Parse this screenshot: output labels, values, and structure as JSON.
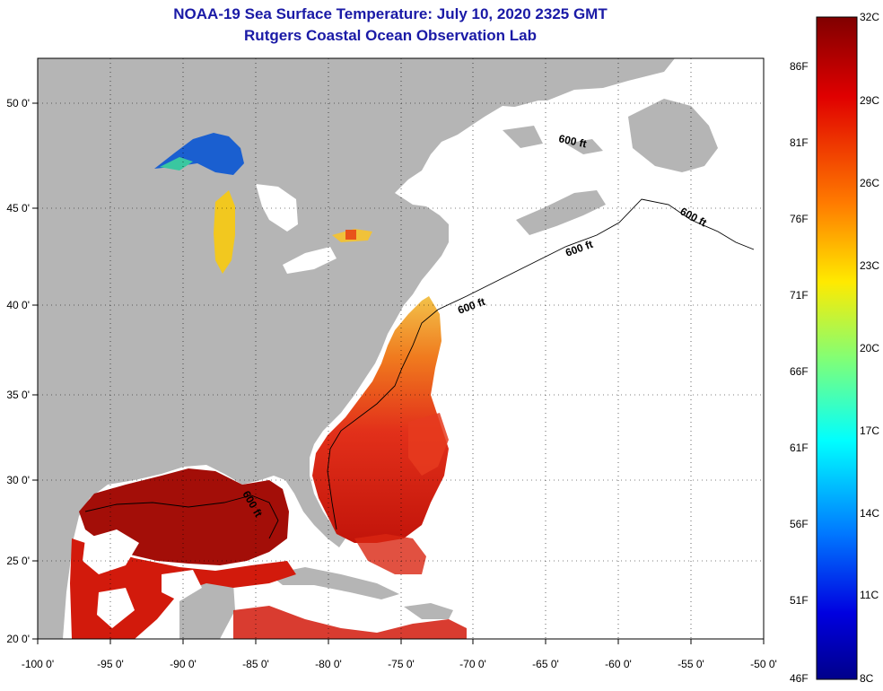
{
  "header": {
    "title": "NOAA-19 Sea Surface Temperature:  July 10, 2020 2325 GMT",
    "subtitle": "Rutgers Coastal Ocean Observation Lab"
  },
  "map": {
    "x_ticks": [
      "-100 0'",
      "-95 0'",
      "-90 0'",
      "-85 0'",
      "-80 0'",
      "-75 0'",
      "-70 0'",
      "-65 0'",
      "-60 0'",
      "-55 0'",
      "-50 0'"
    ],
    "y_ticks": [
      "50 0'",
      "45 0'",
      "40 0'",
      "35 0'",
      "30 0'",
      "25 0'",
      "20 0'"
    ],
    "contour_label": "600 ft",
    "colors": {
      "land": "#b5b5b5",
      "no_data": "#ffffff",
      "warm": "#c61a0b",
      "hot": "#8a0b05"
    }
  },
  "colorbar": {
    "celsius": [
      "32C",
      "29C",
      "26C",
      "23C",
      "20C",
      "17C",
      "14C",
      "11C",
      "8C"
    ],
    "fahrenheit": [
      "86F",
      "81F",
      "76F",
      "71F",
      "66F",
      "61F",
      "56F",
      "51F",
      "46F"
    ]
  }
}
